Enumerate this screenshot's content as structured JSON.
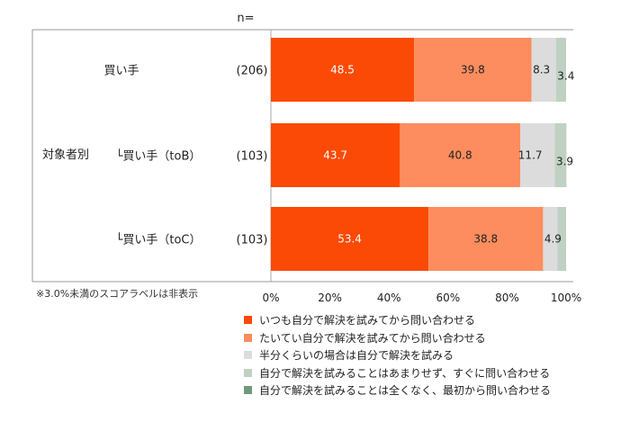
{
  "chart_data": {
    "type": "bar",
    "orientation": "horizontal",
    "stacked": true,
    "n_header": "n=",
    "group_label": "対象者別",
    "categories": [
      "買い手",
      "└買い手（toB）",
      "└買い手（toC）"
    ],
    "n_values": [
      "(206)",
      "(103)",
      "(103)"
    ],
    "series": [
      {
        "name": "いつも自分で解決を試みてから問い合わせる",
        "color": "#fb4a05",
        "values": [
          48.5,
          43.7,
          53.4
        ]
      },
      {
        "name": "たいてい自分で解決を試みてから問い合わせる",
        "color": "#fd8d5e",
        "values": [
          39.8,
          40.8,
          38.8
        ]
      },
      {
        "name": "半分くらいの場合は自分で解決を試みる",
        "color": "#dcdcdc",
        "values": [
          8.3,
          11.7,
          4.9
        ]
      },
      {
        "name": "自分で解決を試みることはあまりせず、すぐに問い合わせる",
        "color": "#bfd1c2",
        "values": [
          3.4,
          3.9,
          2.9
        ]
      },
      {
        "name": "自分で解決を試みることは全くなく、最初から問い合わせる",
        "color": "#6e9b78",
        "values": [
          0.0,
          0.0,
          0.0
        ]
      }
    ],
    "label_threshold": 3.0,
    "note": "※3.0%未満のスコアラベルは非表示",
    "xlim": [
      0,
      100
    ],
    "x_ticks": [
      "0%",
      "20%",
      "40%",
      "60%",
      "80%",
      "100%"
    ],
    "grid": false,
    "legend_position": "bottom"
  }
}
